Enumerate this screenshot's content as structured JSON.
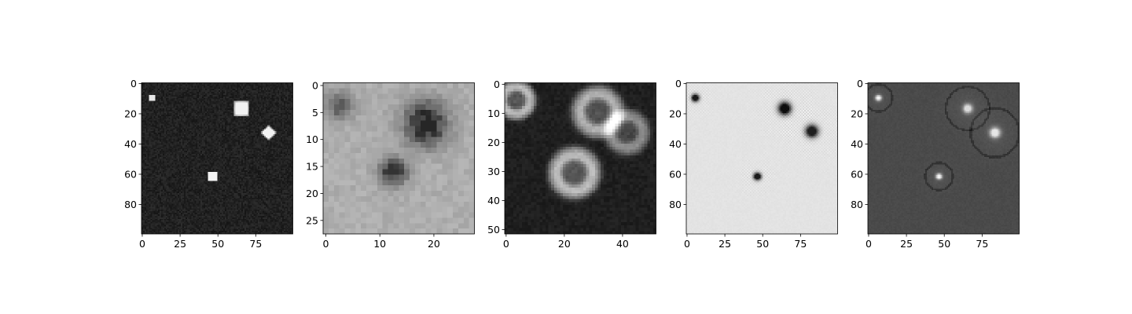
{
  "chart_data": [
    {
      "type": "heatmap",
      "colormap": "gray",
      "image_size": 100,
      "xlim": [
        0,
        100
      ],
      "ylim": [
        100,
        0
      ],
      "x_ticks": [
        0,
        25,
        50,
        75
      ],
      "y_ticks": [
        0,
        20,
        40,
        60,
        80
      ],
      "background": 0.13,
      "noise": 0.05,
      "blobs": [
        {
          "shape": "square",
          "x": 7,
          "y": 10,
          "r": 2,
          "value": 0.9
        },
        {
          "shape": "rounded-square",
          "x": 66,
          "y": 17,
          "r": 4.5,
          "value": 0.95
        },
        {
          "shape": "diamond",
          "x": 84,
          "y": 33,
          "r": 5,
          "value": 0.95
        },
        {
          "shape": "square",
          "x": 47,
          "y": 62,
          "r": 2.5,
          "value": 0.95
        }
      ]
    },
    {
      "type": "heatmap",
      "colormap": "gray",
      "image_size": 28,
      "xlim": [
        0,
        28
      ],
      "ylim": [
        28,
        0
      ],
      "x_ticks": [
        0,
        10,
        20
      ],
      "y_ticks": [
        0,
        5,
        10,
        15,
        20,
        25
      ],
      "background": 0.68,
      "noise": 0.04,
      "blobs": [
        {
          "shape": "dark-cluster",
          "x": 3,
          "y": 4,
          "r": 2.5,
          "value": 0.35
        },
        {
          "shape": "dark-cluster",
          "x": 19,
          "y": 7.5,
          "r": 4,
          "value": 0.15
        },
        {
          "shape": "dark-cluster",
          "x": 13,
          "y": 16.5,
          "r": 2.5,
          "value": 0.2
        }
      ]
    },
    {
      "type": "heatmap",
      "colormap": "gray",
      "image_size": 52,
      "xlim": [
        0,
        52
      ],
      "ylim": [
        52,
        0
      ],
      "x_ticks": [
        0,
        20,
        40
      ],
      "y_ticks": [
        0,
        10,
        20,
        30,
        40,
        50
      ],
      "background": 0.12,
      "noise": 0.03,
      "blobs": [
        {
          "shape": "ring",
          "x": 4,
          "y": 6,
          "r": 6,
          "value": 0.8
        },
        {
          "shape": "ring",
          "x": 32,
          "y": 10,
          "r": 8,
          "value": 0.75
        },
        {
          "shape": "ring",
          "x": 42,
          "y": 17,
          "r": 7,
          "value": 0.6
        },
        {
          "shape": "ring",
          "x": 24,
          "y": 31,
          "r": 8,
          "value": 0.8
        }
      ]
    },
    {
      "type": "heatmap",
      "colormap": "gray",
      "image_size": 100,
      "xlim": [
        0,
        100
      ],
      "ylim": [
        100,
        0
      ],
      "x_ticks": [
        0,
        25,
        50,
        75
      ],
      "y_ticks": [
        0,
        20,
        40,
        60,
        80
      ],
      "background": 0.89,
      "noise": 0.01,
      "blobs": [
        {
          "shape": "dark-dot",
          "x": 6,
          "y": 10,
          "r": 3,
          "value": 0.1
        },
        {
          "shape": "dark-dot",
          "x": 65,
          "y": 17,
          "r": 5,
          "value": 0.05
        },
        {
          "shape": "dark-dot",
          "x": 83,
          "y": 32,
          "r": 5,
          "value": 0.12
        },
        {
          "shape": "dark-dot",
          "x": 47,
          "y": 62,
          "r": 3,
          "value": 0.1
        }
      ]
    },
    {
      "type": "heatmap",
      "colormap": "gray",
      "image_size": 100,
      "xlim": [
        0,
        100
      ],
      "ylim": [
        100,
        0
      ],
      "x_ticks": [
        0,
        25,
        50,
        75
      ],
      "y_ticks": [
        0,
        20,
        40,
        60,
        80
      ],
      "background": 0.29,
      "noise": 0.015,
      "blobs": [
        {
          "shape": "bright-dot",
          "x": 7,
          "y": 10,
          "r": 2.5,
          "value": 0.95
        },
        {
          "shape": "bright-dot",
          "x": 66,
          "y": 17,
          "r": 4,
          "value": 0.85
        },
        {
          "shape": "bright-dot",
          "x": 84,
          "y": 33,
          "r": 4.5,
          "value": 0.9
        },
        {
          "shape": "bright-dot",
          "x": 47,
          "y": 62,
          "r": 2.5,
          "value": 0.95
        }
      ]
    }
  ]
}
